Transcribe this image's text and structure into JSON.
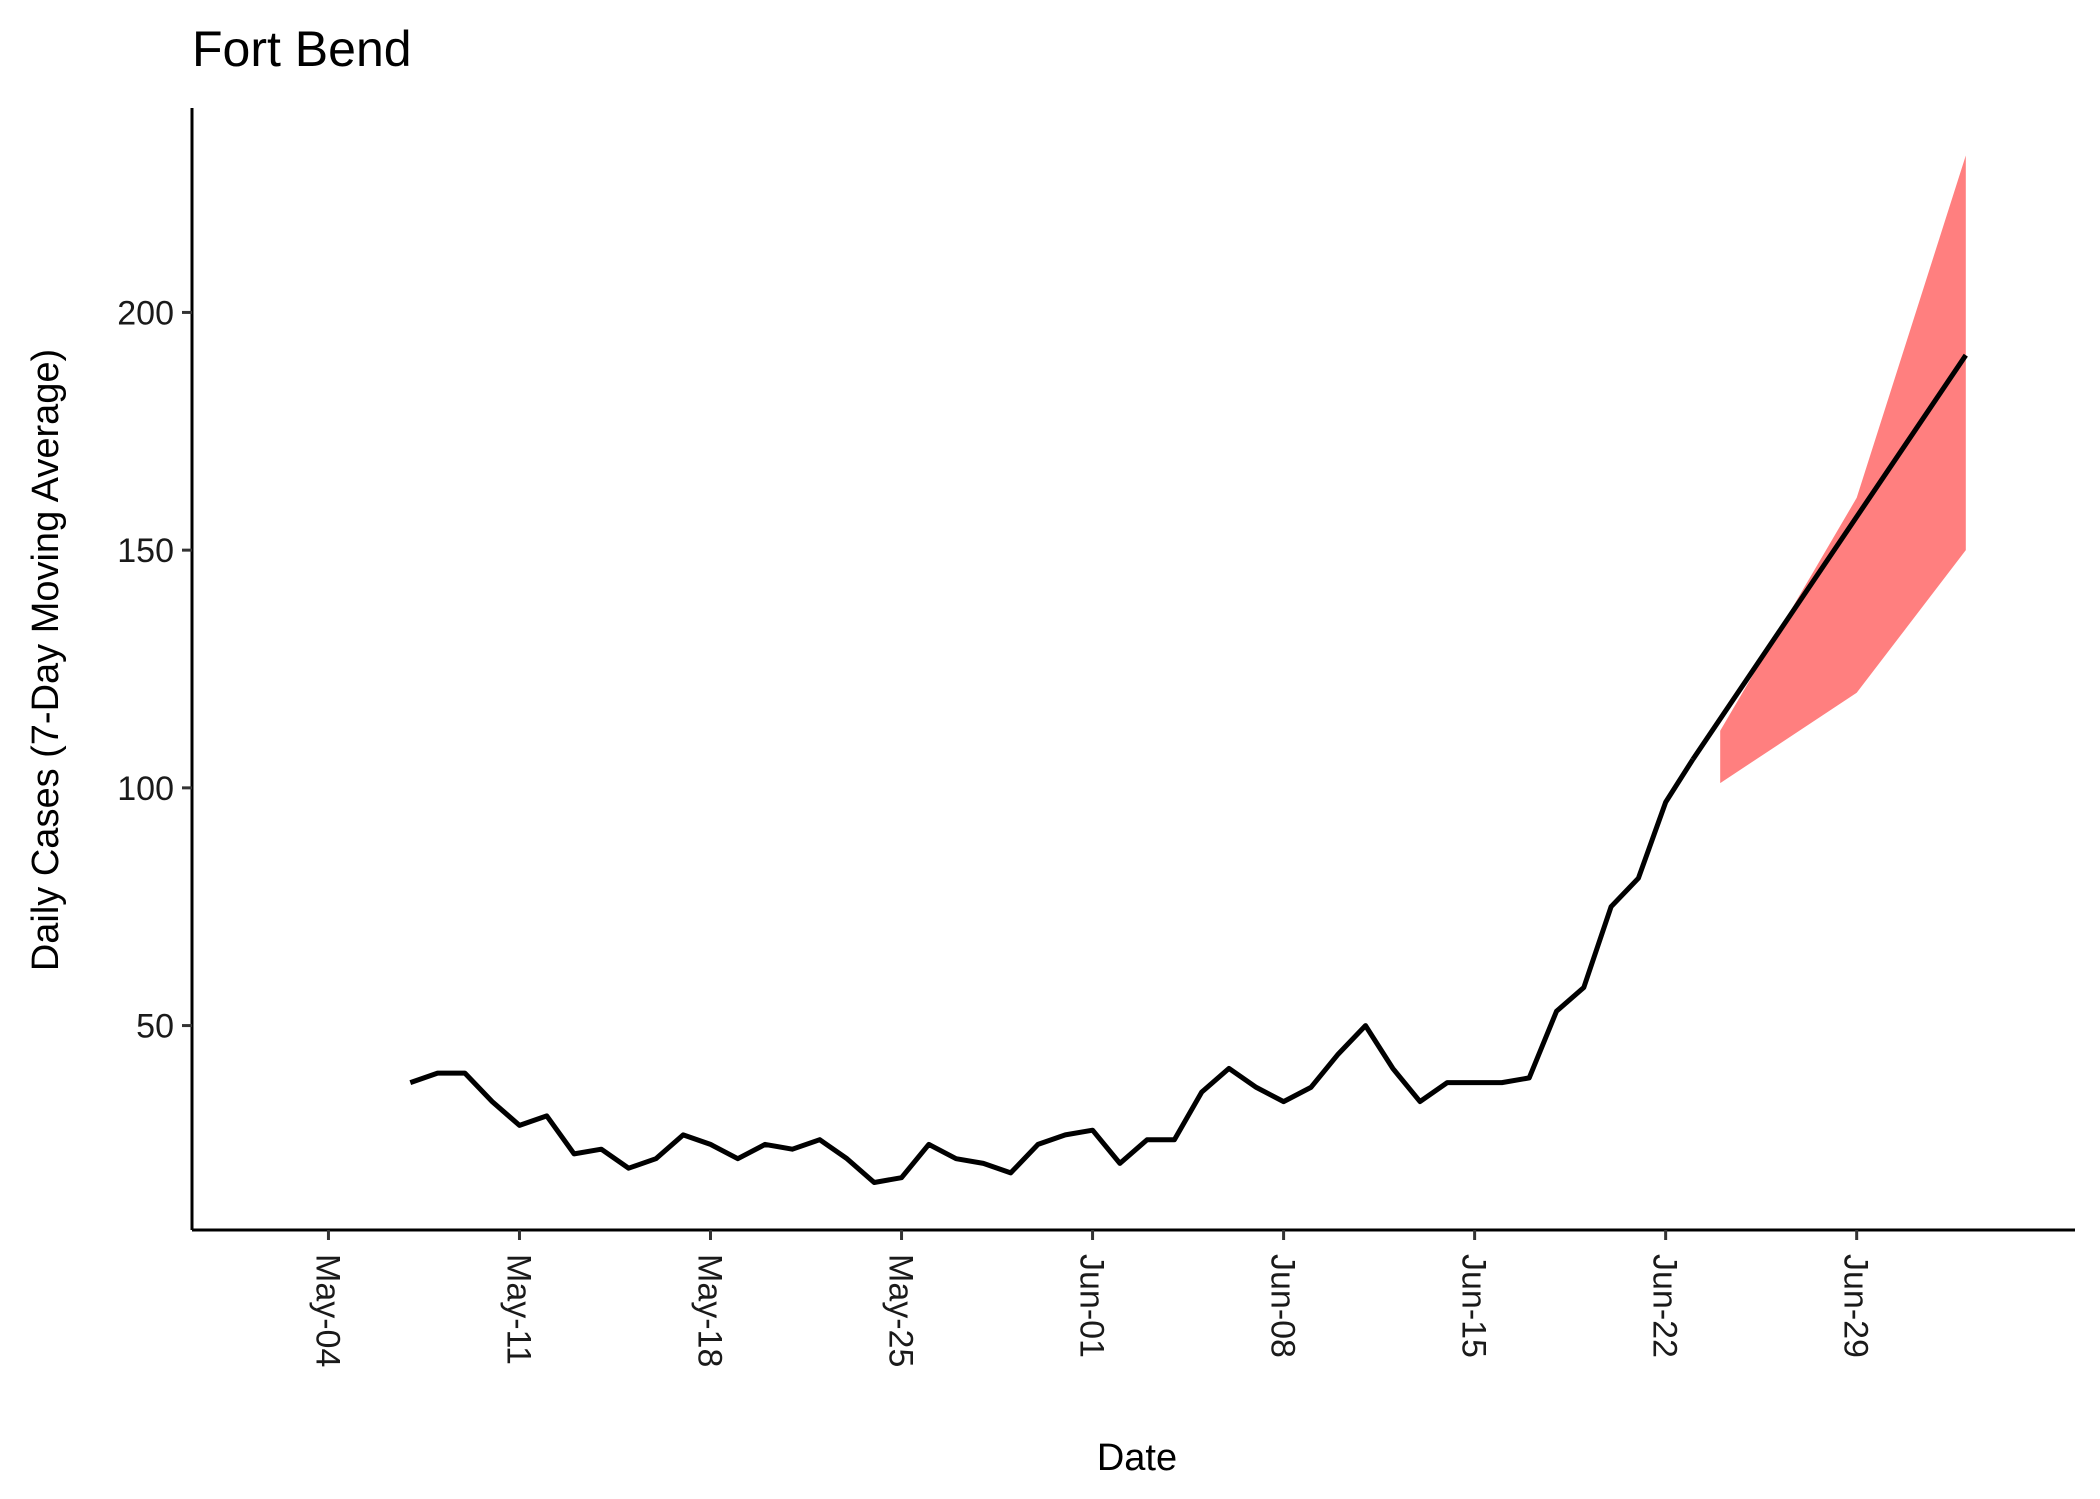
{
  "chart_data": {
    "type": "line",
    "title": "Fort Bend",
    "xlabel": "Date",
    "ylabel": "Daily Cases (7-Day Moving Average)",
    "x_ticks": [
      "May-04",
      "May-11",
      "May-18",
      "May-25",
      "Jun-01",
      "Jun-08",
      "Jun-15",
      "Jun-22",
      "Jun-29"
    ],
    "y_ticks": [
      50,
      100,
      150,
      200
    ],
    "xlim": [
      "2020-04-29",
      "2020-07-07"
    ],
    "ylim": [
      7,
      243
    ],
    "grid": false,
    "legend": "none",
    "colors": {
      "line": "#000000",
      "band": "#ff7f7f",
      "axis": "#000000"
    },
    "series": [
      {
        "type": "line",
        "x": [
          "2020-05-07",
          "2020-05-08",
          "2020-05-09",
          "2020-05-10",
          "2020-05-11",
          "2020-05-12",
          "2020-05-13",
          "2020-05-14",
          "2020-05-15",
          "2020-05-16",
          "2020-05-17",
          "2020-05-18",
          "2020-05-19",
          "2020-05-20",
          "2020-05-21",
          "2020-05-22",
          "2020-05-23",
          "2020-05-24",
          "2020-05-25",
          "2020-05-26",
          "2020-05-27",
          "2020-05-28",
          "2020-05-29",
          "2020-05-30",
          "2020-05-31",
          "2020-06-01",
          "2020-06-02",
          "2020-06-03",
          "2020-06-04",
          "2020-06-05",
          "2020-06-06",
          "2020-06-07",
          "2020-06-08",
          "2020-06-09",
          "2020-06-10",
          "2020-06-11",
          "2020-06-12",
          "2020-06-13",
          "2020-06-14",
          "2020-06-15",
          "2020-06-16",
          "2020-06-17",
          "2020-06-18",
          "2020-06-19",
          "2020-06-20",
          "2020-06-21",
          "2020-06-22",
          "2020-06-23"
        ],
        "values": [
          38,
          40,
          40,
          34,
          29,
          31,
          23,
          24,
          20,
          22,
          27,
          25,
          22,
          25,
          24,
          26,
          22,
          17,
          18,
          25,
          22,
          21,
          19,
          25,
          27,
          28,
          21,
          26,
          26,
          36,
          41,
          37,
          34,
          37,
          44,
          50,
          41,
          34,
          38,
          38,
          38,
          39,
          53,
          58,
          75,
          81,
          97,
          106
        ]
      },
      {
        "type": "line",
        "x": [
          "2020-06-23",
          "2020-07-03"
        ],
        "values": [
          106,
          191
        ]
      },
      {
        "type": "area",
        "x": [
          "2020-06-24",
          "2020-06-29",
          "2020-07-03"
        ],
        "upper": [
          112,
          161,
          233
        ],
        "lower": [
          101,
          120,
          150
        ]
      }
    ]
  }
}
